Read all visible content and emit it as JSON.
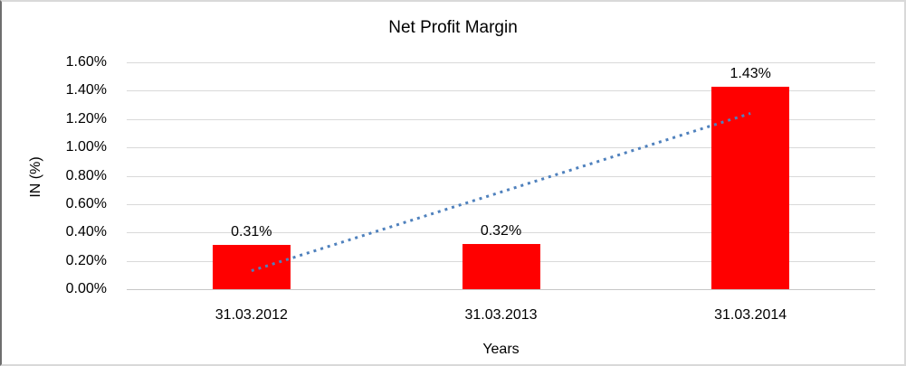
{
  "chart_data": {
    "type": "bar",
    "title": "Net Profit Margin",
    "xlabel": "Years",
    "ylabel": "IN (%)",
    "categories": [
      "31.03.2012",
      "31.03.2013",
      "31.03.2014"
    ],
    "values": [
      0.31,
      0.32,
      1.43
    ],
    "data_labels": [
      "0.31%",
      "0.32%",
      "1.43%"
    ],
    "y_ticks": [
      "0.00%",
      "0.20%",
      "0.40%",
      "0.60%",
      "0.80%",
      "1.00%",
      "1.20%",
      "1.40%",
      "1.60%"
    ],
    "ylim": [
      0,
      1.6
    ],
    "grid": true,
    "legend": "none",
    "bar_color": "#FF0000",
    "gridline_color": "#D9D9D9",
    "trendline": {
      "type": "linear",
      "style": "dotted",
      "color": "#4F81BD",
      "points": [
        {
          "category_index": 0,
          "value": 0.13
        },
        {
          "category_index": 2,
          "value": 1.24
        }
      ]
    }
  }
}
